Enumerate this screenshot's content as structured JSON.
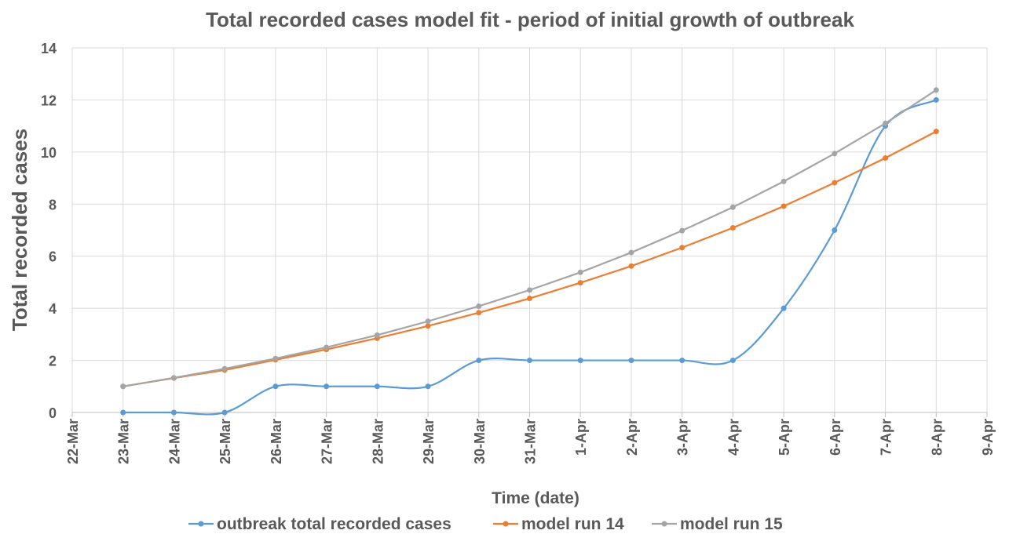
{
  "chart_data": {
    "type": "line",
    "title": "Total recorded cases model fit - period of initial growth of outbreak",
    "x_label": "Time (date)",
    "y_label": "Total recorded cases",
    "categories": [
      "22-Mar",
      "23-Mar",
      "24-Mar",
      "25-Mar",
      "26-Mar",
      "27-Mar",
      "28-Mar",
      "29-Mar",
      "30-Mar",
      "31-Mar",
      "1-Apr",
      "2-Apr",
      "3-Apr",
      "4-Apr",
      "5-Apr",
      "6-Apr",
      "7-Apr",
      "8-Apr",
      "9-Apr"
    ],
    "series": [
      {
        "name": "outbreak total recorded cases",
        "color": "#5b9bd5",
        "smooth": true,
        "values": [
          null,
          0,
          0,
          0,
          1,
          1,
          1,
          1,
          2,
          2,
          2,
          2,
          2,
          2,
          4,
          7,
          11,
          12,
          null
        ]
      },
      {
        "name": "model run 14",
        "color": "#ed7d31",
        "smooth": false,
        "values": [
          null,
          1,
          1.32,
          1.63,
          2.02,
          2.42,
          2.85,
          3.32,
          3.83,
          4.38,
          4.98,
          5.62,
          6.33,
          7.09,
          7.92,
          8.82,
          9.77,
          10.79,
          null
        ]
      },
      {
        "name": "model run 15",
        "color": "#a5a5a5",
        "smooth": false,
        "values": [
          null,
          1,
          1.33,
          1.68,
          2.07,
          2.5,
          2.97,
          3.5,
          4.08,
          4.7,
          5.38,
          6.14,
          6.98,
          7.88,
          8.87,
          9.94,
          11.1,
          12.38,
          null
        ]
      }
    ],
    "ylim": [
      0,
      14
    ],
    "yticks": [
      0,
      2,
      4,
      6,
      8,
      10,
      12,
      14
    ],
    "grid": true,
    "legend": "bottom"
  }
}
